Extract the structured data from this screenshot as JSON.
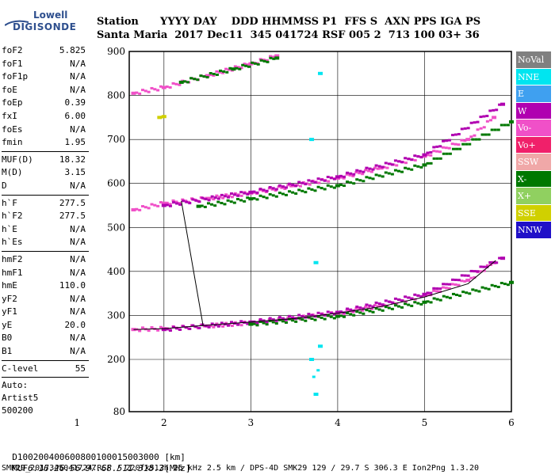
{
  "logo": {
    "line1": "Lowell",
    "line2": "DIGISONDE"
  },
  "header": {
    "row1": "Station      YYYY DAY    DDD HHMMSS P1  FFS S  AXN PPS IGA PS",
    "row2": "Santa Maria  2017 Dec11  345 041724 RSF 005 2  713 100 03+ 36"
  },
  "params_group1": [
    {
      "label": "foF2",
      "value": "5.825"
    },
    {
      "label": "foF1",
      "value": "N/A"
    },
    {
      "label": "foF1p",
      "value": "N/A"
    },
    {
      "label": "foE",
      "value": "N/A"
    },
    {
      "label": "foEp",
      "value": "0.39"
    },
    {
      "label": "fxI",
      "value": "6.00"
    },
    {
      "label": "foEs",
      "value": "N/A"
    },
    {
      "label": "fmin",
      "value": "1.95"
    }
  ],
  "params_group2": [
    {
      "label": "MUF(D)",
      "value": "18.32"
    },
    {
      "label": "M(D)",
      "value": "3.15"
    },
    {
      "label": "D",
      "value": "N/A"
    }
  ],
  "params_group3": [
    {
      "label": "h`F",
      "value": "277.5"
    },
    {
      "label": "h`F2",
      "value": "277.5"
    },
    {
      "label": "h`E",
      "value": "N/A"
    },
    {
      "label": "h`Es",
      "value": "N/A"
    }
  ],
  "params_group4": [
    {
      "label": "hmF2",
      "value": "N/A"
    },
    {
      "label": "hmF1",
      "value": "N/A"
    },
    {
      "label": "hmE",
      "value": "110.0"
    },
    {
      "label": "yF2",
      "value": "N/A"
    },
    {
      "label": "yF1",
      "value": "N/A"
    },
    {
      "label": "yE",
      "value": "20.0"
    },
    {
      "label": "B0",
      "value": "N/A"
    },
    {
      "label": "B1",
      "value": "N/A"
    }
  ],
  "params_group5": [
    {
      "label": "C-level",
      "value": "55"
    }
  ],
  "autoscaling": {
    "line1": "Auto:",
    "line2": "Artist5",
    "line3": "500200"
  },
  "legend": [
    {
      "label": "NoVal",
      "color": "#808080"
    },
    {
      "label": "NNE",
      "color": "#00e5f0"
    },
    {
      "label": "E",
      "color": "#3fa0f0"
    },
    {
      "label": "W",
      "color": "#b000b0"
    },
    {
      "label": "Vo-",
      "color": "#f050c8"
    },
    {
      "label": "Vo+",
      "color": "#f0206a"
    },
    {
      "label": "SSW",
      "color": "#f0a8a8"
    },
    {
      "label": "X-",
      "color": "#007800"
    },
    {
      "label": "X+",
      "color": "#90d060"
    },
    {
      "label": "SSE",
      "color": "#d0d000"
    },
    {
      "label": "NNW",
      "color": "#2010c8"
    }
  ],
  "muf_table": {
    "d_label": "D",
    "d_values": [
      "100",
      "200",
      "400",
      "600",
      "800",
      "1000",
      "1500",
      "3000"
    ],
    "d_unit": "[km]",
    "muf_label": "MUF",
    "muf_values": [
      "6.1",
      "6.2",
      "6.5",
      "6.9",
      "7.6",
      "8.5",
      "11.3",
      "18.3"
    ],
    "muf_unit": "[MHz]"
  },
  "footer": "SMK29_2017345041724.RSF / 220fx512h 25 kHz 2.5 km / DPS-4D SMK29 129 / 29.7 S 306.3 E Ion2Png 1.3.20",
  "chart_data": {
    "type": "scatter",
    "title": "",
    "xlabel": "",
    "ylabel": "",
    "xlim": [
      1.6,
      6.0
    ],
    "ylim": [
      80,
      900
    ],
    "x_ticks": [
      1,
      2,
      3,
      4,
      5,
      6
    ],
    "y_ticks": [
      80,
      200,
      300,
      400,
      500,
      600,
      700,
      800,
      900
    ],
    "grid": true,
    "series": [
      {
        "name": "Vo-",
        "color": "#f050c8",
        "points": [
          [
            1.65,
            268
          ],
          [
            2.0,
            270
          ],
          [
            2.5,
            276
          ],
          [
            3.0,
            283
          ],
          [
            3.5,
            293
          ],
          [
            4.0,
            305
          ],
          [
            4.5,
            322
          ],
          [
            5.0,
            345
          ],
          [
            5.5,
            380
          ],
          [
            5.8,
            420
          ],
          [
            1.65,
            540
          ],
          [
            2.0,
            555
          ],
          [
            2.5,
            566
          ],
          [
            3.0,
            578
          ],
          [
            3.5,
            595
          ],
          [
            4.0,
            612
          ],
          [
            4.5,
            635
          ],
          [
            5.0,
            662
          ],
          [
            5.5,
            700
          ],
          [
            5.8,
            750
          ],
          [
            1.65,
            805
          ],
          [
            2.0,
            818
          ],
          [
            2.5,
            845
          ],
          [
            3.0,
            872
          ],
          [
            3.3,
            890
          ]
        ]
      },
      {
        "name": "W",
        "color": "#b000b0",
        "points": [
          [
            2.0,
            268
          ],
          [
            3.0,
            285
          ],
          [
            4.0,
            307
          ],
          [
            5.0,
            348
          ],
          [
            5.9,
            430
          ],
          [
            2.0,
            550
          ],
          [
            3.0,
            580
          ],
          [
            4.0,
            615
          ],
          [
            5.0,
            665
          ],
          [
            5.9,
            780
          ]
        ]
      },
      {
        "name": "X-",
        "color": "#007800",
        "points": [
          [
            3.0,
            280
          ],
          [
            4.0,
            298
          ],
          [
            5.0,
            330
          ],
          [
            6.0,
            375
          ],
          [
            2.4,
            548
          ],
          [
            3.0,
            565
          ],
          [
            4.0,
            595
          ],
          [
            5.0,
            642
          ],
          [
            6.0,
            740
          ],
          [
            2.2,
            830
          ],
          [
            2.8,
            860
          ],
          [
            3.3,
            885
          ]
        ]
      },
      {
        "name": "NNE",
        "color": "#00e5f0",
        "points": [
          [
            3.7,
            200
          ],
          [
            3.75,
            120
          ],
          [
            3.8,
            230
          ],
          [
            3.7,
            700
          ],
          [
            3.8,
            850
          ],
          [
            3.75,
            420
          ]
        ]
      },
      {
        "name": "SSE",
        "color": "#d0d000",
        "points": [
          [
            1.95,
            750
          ],
          [
            2.0,
            752
          ]
        ]
      }
    ],
    "trace": [
      [
        1.65,
        268
      ],
      [
        2.0,
        270
      ],
      [
        2.45,
        277
      ],
      [
        3.0,
        285
      ],
      [
        3.5,
        293
      ],
      [
        4.0,
        305
      ],
      [
        4.5,
        320
      ],
      [
        5.0,
        342
      ],
      [
        5.5,
        372
      ],
      [
        5.82,
        425
      ]
    ],
    "trace_upper": [
      [
        2.2,
        560
      ],
      [
        2.45,
        277
      ]
    ]
  }
}
